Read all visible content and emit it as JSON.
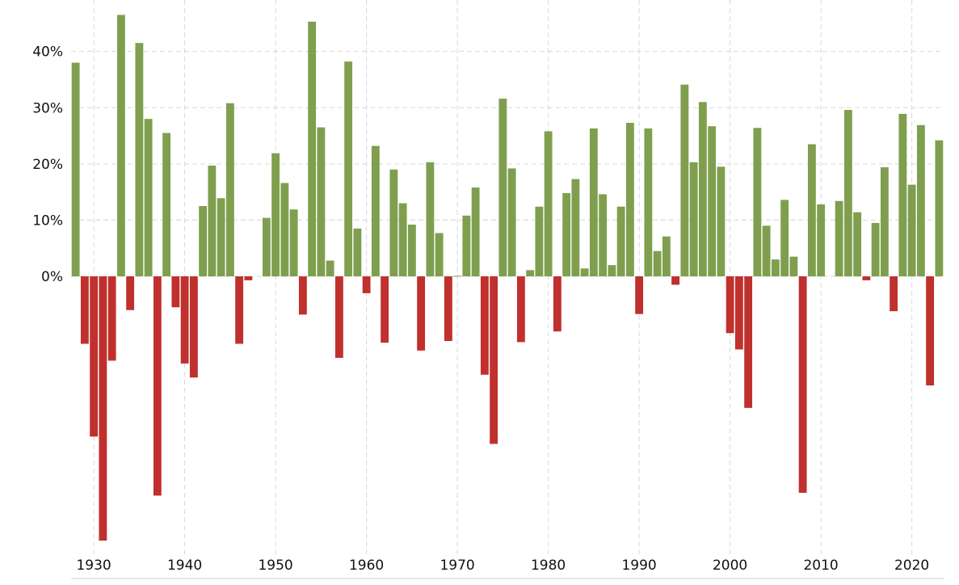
{
  "chart_data": {
    "type": "bar",
    "title": "",
    "xlabel": "",
    "ylabel": "",
    "ylim": [
      -48,
      48
    ],
    "xlim": [
      1927.5,
      2023.5
    ],
    "y_ticks": [
      0,
      10,
      20,
      30,
      40
    ],
    "y_tick_labels": [
      "0%",
      "10%",
      "20%",
      "30%",
      "40%"
    ],
    "x_ticks": [
      1930,
      1940,
      1950,
      1960,
      1970,
      1980,
      1990,
      2000,
      2010,
      2020
    ],
    "x_tick_labels": [
      "1930",
      "1940",
      "1950",
      "1960",
      "1970",
      "1980",
      "1990",
      "2000",
      "2010",
      "2020"
    ],
    "grid": true,
    "legend": "none",
    "positive_color": "#7f9f4f",
    "negative_color": "#c0302d",
    "x": [
      1928,
      1929,
      1930,
      1931,
      1932,
      1933,
      1934,
      1935,
      1936,
      1937,
      1938,
      1939,
      1940,
      1941,
      1942,
      1943,
      1944,
      1945,
      1946,
      1947,
      1948,
      1949,
      1950,
      1951,
      1952,
      1953,
      1954,
      1955,
      1956,
      1957,
      1958,
      1959,
      1960,
      1961,
      1962,
      1963,
      1964,
      1965,
      1966,
      1967,
      1968,
      1969,
      1970,
      1971,
      1972,
      1973,
      1974,
      1975,
      1976,
      1977,
      1978,
      1979,
      1980,
      1981,
      1982,
      1983,
      1984,
      1985,
      1986,
      1987,
      1988,
      1989,
      1990,
      1991,
      1992,
      1993,
      1994,
      1995,
      1996,
      1997,
      1998,
      1999,
      2000,
      2001,
      2002,
      2003,
      2004,
      2005,
      2006,
      2007,
      2008,
      2009,
      2010,
      2011,
      2012,
      2013,
      2014,
      2015,
      2016,
      2017,
      2018,
      2019,
      2020,
      2021,
      2022,
      2023
    ],
    "values": [
      38,
      -12,
      -28.5,
      -47,
      -15,
      46.5,
      -6,
      41.5,
      28,
      -39,
      25.5,
      -5.5,
      -15.5,
      -18,
      12.5,
      19.7,
      13.9,
      30.8,
      -12,
      -0.7,
      0,
      10.4,
      21.9,
      16.6,
      11.9,
      -6.8,
      45.3,
      26.5,
      2.8,
      -14.5,
      38.2,
      8.5,
      -3,
      23.2,
      -11.8,
      19,
      13,
      9.2,
      -13.2,
      20.3,
      7.7,
      -11.5,
      0.1,
      10.8,
      15.8,
      -17.5,
      -29.8,
      31.6,
      19.2,
      -11.7,
      1.1,
      12.4,
      25.8,
      -9.8,
      14.8,
      17.3,
      1.4,
      26.3,
      14.6,
      2,
      12.4,
      27.3,
      -6.7,
      26.3,
      4.5,
      7.1,
      -1.5,
      34.1,
      20.3,
      31,
      26.7,
      19.5,
      -10.1,
      -13,
      -23.4,
      26.4,
      9,
      3,
      13.6,
      3.5,
      -38.5,
      23.5,
      12.8,
      0,
      13.4,
      29.6,
      11.4,
      -0.7,
      9.5,
      19.4,
      -6.2,
      28.9,
      16.3,
      26.9,
      -19.4,
      24.2
    ]
  }
}
